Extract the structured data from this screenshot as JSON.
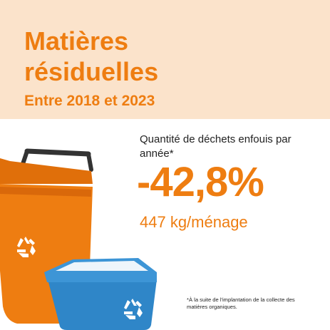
{
  "header": {
    "title": "Matières résiduelles",
    "subtitle": "Entre 2018 et 2023"
  },
  "stat": {
    "label": "Quantité de déchets enfouis par année*",
    "value": "-42,8%",
    "per_household": "447 kg/ménage"
  },
  "footnote": "*À la suite de l'implantation de la collecte des matières organiques.",
  "illustration": {
    "orange_bin_icon": "recycle-icon",
    "blue_bin_icon": "recycle-icon"
  },
  "colors": {
    "accent": "#ee7d11",
    "header_bg": "#fbe3cb",
    "bin_orange": "#ee7d11",
    "bin_blue": "#2f86c8"
  }
}
